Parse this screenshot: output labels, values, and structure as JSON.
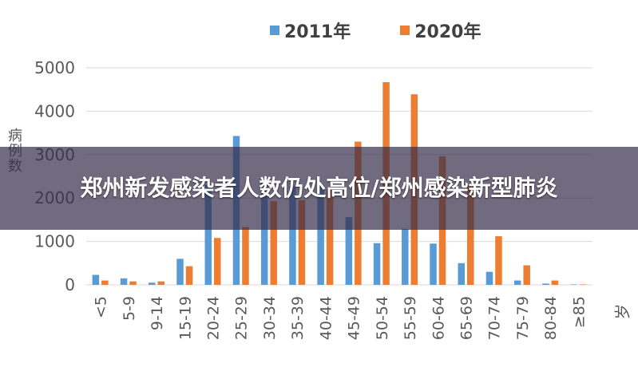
{
  "colors": {
    "series_2011": "#5B9BD5",
    "series_2020": "#ED7D31",
    "grid": "#D9D9D9",
    "axis_text": "#595959"
  },
  "banner": {
    "headline": "郑州新发感染者人数仍处高位/郑州感染新型肺炎"
  },
  "chart_data": {
    "type": "bar",
    "title": "",
    "ylabel": "病例数",
    "xunit": "岁",
    "ylim": [
      0,
      5000
    ],
    "yticks": [
      0,
      1000,
      2000,
      3000,
      4000,
      5000
    ],
    "grid": true,
    "legend_position": "top",
    "categories": [
      "<5",
      "5-9",
      "9-14",
      "15-19",
      "20-24",
      "25-29",
      "30-34",
      "35-39",
      "40-44",
      "45-49",
      "50-54",
      "55-59",
      "60-64",
      "65-69",
      "70-74",
      "75-79",
      "80-84",
      "≥85"
    ],
    "series": [
      {
        "name": "2011年",
        "values": [
          230,
          150,
          50,
          600,
          2300,
          3430,
          2350,
          2270,
          2290,
          1560,
          960,
          1290,
          950,
          500,
          300,
          100,
          30,
          10
        ]
      },
      {
        "name": "2020年",
        "values": [
          100,
          80,
          80,
          430,
          1080,
          1330,
          1930,
          1950,
          2200,
          3300,
          4670,
          4390,
          2960,
          2300,
          1120,
          450,
          100,
          10
        ]
      }
    ]
  }
}
